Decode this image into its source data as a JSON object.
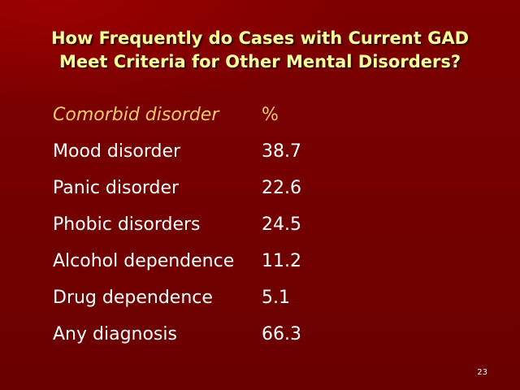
{
  "slide": {
    "title_line1": "How Frequently do Cases with Current GAD",
    "title_line2": "Meet Criteria for Other Mental Disorders?",
    "table": {
      "header": {
        "name": "Comorbid disorder",
        "value": "%"
      },
      "rows": [
        {
          "name": "Mood disorder",
          "value": "38.7"
        },
        {
          "name": "Panic disorder",
          "value": "22.6"
        },
        {
          "name": "Phobic disorders",
          "value": "24.5"
        },
        {
          "name": "Alcohol dependence",
          "value": "11.2"
        },
        {
          "name": "Drug dependence",
          "value": "5.1"
        },
        {
          "name": "Any diagnosis",
          "value": "66.3"
        }
      ]
    },
    "page_number": "23"
  },
  "colors": {
    "background": "#7a0000",
    "title": "#ffff99",
    "header": "#ffcc66",
    "text": "#ffffff"
  }
}
